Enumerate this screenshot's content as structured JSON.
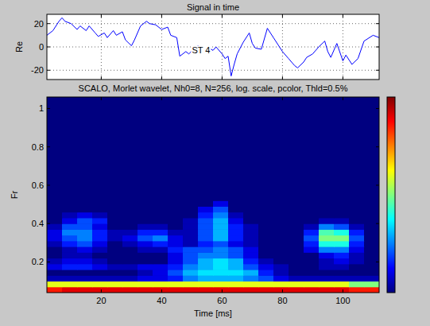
{
  "chart_data": [
    {
      "type": "line",
      "title": "Signal in time",
      "ylabel": "Re",
      "grid": true,
      "tick_labels": "y",
      "xlim": [
        2,
        112
      ],
      "ylim": [
        -28,
        28
      ],
      "xticks": [
        20,
        40,
        60,
        80,
        100
      ],
      "yticks": [
        -20,
        0,
        20
      ],
      "annotations": [
        {
          "text": "ST 4",
          "x": 50,
          "y": -3
        }
      ],
      "x": [
        2,
        4,
        6,
        7,
        8,
        10,
        12,
        13,
        15,
        16,
        18,
        19,
        21,
        22,
        24,
        25,
        27,
        28,
        30,
        31,
        33,
        35,
        36,
        38,
        40,
        42,
        43,
        45,
        46,
        48,
        49,
        51,
        52,
        54,
        55,
        57,
        58,
        60,
        61,
        62,
        63,
        64,
        65,
        67,
        69,
        70,
        71,
        73,
        75,
        77,
        79,
        80,
        82,
        84,
        85,
        87,
        88,
        90,
        92,
        94,
        95,
        96,
        98,
        100,
        101,
        103,
        105,
        107,
        110,
        112
      ],
      "series": [
        {
          "name": "Re",
          "color": "#0000ff",
          "values": [
            10,
            14,
            22,
            25,
            22,
            20,
            15,
            18,
            14,
            18,
            12,
            9,
            12,
            8,
            14,
            10,
            13,
            6,
            1,
            6,
            18,
            22,
            20,
            19,
            15,
            17,
            10,
            8,
            -8,
            -4,
            -6,
            -1,
            1,
            -2,
            0,
            -3,
            0,
            -6,
            -10,
            -8,
            -25,
            -15,
            -6,
            4,
            12,
            3,
            -1,
            -2,
            16,
            8,
            0,
            -4,
            -10,
            -16,
            -18,
            -13,
            -9,
            -6,
            0,
            5,
            -4,
            -9,
            3,
            -12,
            -7,
            -15,
            -10,
            5,
            10,
            8
          ]
        }
      ]
    },
    {
      "type": "heatmap",
      "title": "SCALO, Morlet wavelet, Nh0=8, N=256, log. scale, pcolor, Thld=0.5%",
      "xlabel": "Time [ms]",
      "ylabel": "Fr",
      "xlim": [
        2,
        112
      ],
      "ylim": [
        0.04,
        1.06
      ],
      "xticks": [
        20,
        40,
        60,
        80,
        100
      ],
      "yticks": [
        0.2,
        0.4,
        0.6,
        0.8,
        1
      ],
      "colorbar_range": [
        0,
        1
      ],
      "x": [
        4.5,
        9.5,
        14.5,
        19.5,
        24.5,
        29.5,
        34.5,
        39.5,
        44.5,
        49.5,
        54.5,
        59.5,
        64.5,
        69.5,
        74.5,
        79.5,
        84.5,
        89.5,
        94.5,
        99.5,
        104.5,
        109.5
      ],
      "y": [
        0.055,
        0.085,
        0.115,
        0.145,
        0.175,
        0.205,
        0.235,
        0.265,
        0.295,
        0.325,
        0.355,
        0.385,
        0.415,
        0.445,
        0.475,
        0.505,
        0.535,
        0.565,
        0.595,
        0.625,
        0.655,
        0.685,
        0.715,
        0.745,
        0.775,
        0.805,
        0.835,
        0.865,
        0.895,
        0.925,
        0.955,
        0.985,
        1.015,
        1.045
      ],
      "values": [
        [
          0.85,
          0.9,
          0.9,
          0.9,
          0.9,
          0.9,
          0.9,
          0.9,
          0.9,
          0.9,
          0.9,
          0.9,
          0.9,
          0.9,
          0.9,
          0.9,
          0.9,
          0.9,
          0.9,
          0.9,
          0.85,
          0.85
        ],
        [
          0.6,
          0.6,
          0.6,
          0.6,
          0.6,
          0.6,
          0.6,
          0.6,
          0.6,
          0.6,
          0.6,
          0.6,
          0.6,
          0.6,
          0.6,
          0.6,
          0.6,
          0.6,
          0.6,
          0.6,
          0.5,
          0.5
        ],
        [
          0.05,
          0.05,
          0.05,
          0.05,
          0.05,
          0.05,
          0.1,
          0.1,
          0.15,
          0.25,
          0.3,
          0.3,
          0.3,
          0.25,
          0.2,
          0.1,
          0.05,
          0.05,
          0.05,
          0.05,
          0.05,
          0.05
        ],
        [
          0,
          0,
          0,
          0,
          0,
          0,
          0.05,
          0.1,
          0.2,
          0.3,
          0.35,
          0.35,
          0.35,
          0.3,
          0.15,
          0.05,
          0,
          0,
          0,
          0,
          0,
          0
        ],
        [
          0.1,
          0.15,
          0.15,
          0.1,
          0.05,
          0.05,
          0.1,
          0.1,
          0.15,
          0.25,
          0.3,
          0.35,
          0.3,
          0.2,
          0.1,
          0.05,
          0,
          0,
          0.05,
          0.05,
          0,
          0
        ],
        [
          0.05,
          0.1,
          0.1,
          0.05,
          0,
          0,
          0,
          0,
          0.1,
          0.2,
          0.3,
          0.35,
          0.3,
          0.15,
          0.05,
          0,
          0,
          0,
          0.05,
          0.1,
          0.05,
          0
        ],
        [
          0,
          0.05,
          0.05,
          0,
          0,
          0,
          0,
          0,
          0.1,
          0.2,
          0.25,
          0.25,
          0.2,
          0.1,
          0,
          0,
          0,
          0,
          0.1,
          0.15,
          0.05,
          0
        ],
        [
          0,
          0.05,
          0.1,
          0.05,
          0,
          0,
          0.05,
          0.05,
          0.15,
          0.2,
          0.2,
          0.25,
          0.2,
          0.1,
          0,
          0,
          0,
          0.1,
          0.25,
          0.25,
          0.1,
          0
        ],
        [
          0.05,
          0.15,
          0.2,
          0.1,
          0,
          0.05,
          0.1,
          0.15,
          0.1,
          0.05,
          0.15,
          0.2,
          0.1,
          0.05,
          0,
          0,
          0,
          0.15,
          0.4,
          0.4,
          0.15,
          0
        ],
        [
          0.1,
          0.2,
          0.25,
          0.15,
          0.05,
          0.1,
          0.2,
          0.25,
          0.1,
          0.05,
          0.2,
          0.3,
          0.15,
          0.05,
          0,
          0,
          0,
          0.2,
          0.5,
          0.5,
          0.2,
          0
        ],
        [
          0.1,
          0.25,
          0.25,
          0.15,
          0.05,
          0.05,
          0.15,
          0.15,
          0.05,
          0.05,
          0.2,
          0.3,
          0.15,
          0.05,
          0,
          0,
          0,
          0.15,
          0.45,
          0.4,
          0.15,
          0
        ],
        [
          0.05,
          0.2,
          0.2,
          0.1,
          0,
          0,
          0.05,
          0.05,
          0,
          0.05,
          0.2,
          0.3,
          0.15,
          0.05,
          0,
          0,
          0,
          0.05,
          0.25,
          0.2,
          0.05,
          0
        ],
        [
          0,
          0.1,
          0.2,
          0.15,
          0,
          0,
          0,
          0,
          0,
          0.05,
          0.2,
          0.3,
          0.1,
          0,
          0,
          0,
          0,
          0,
          0.05,
          0.05,
          0,
          0
        ],
        [
          0,
          0.05,
          0.1,
          0.05,
          0,
          0,
          0,
          0,
          0,
          0,
          0.15,
          0.25,
          0.05,
          0,
          0,
          0,
          0,
          0,
          0,
          0,
          0,
          0
        ],
        [
          0,
          0,
          0,
          0,
          0,
          0,
          0,
          0,
          0,
          0,
          0.1,
          0.2,
          0,
          0,
          0,
          0,
          0,
          0,
          0,
          0,
          0,
          0
        ],
        [
          0,
          0,
          0,
          0,
          0,
          0,
          0,
          0,
          0,
          0,
          0,
          0.1,
          0,
          0,
          0,
          0,
          0,
          0,
          0,
          0,
          0,
          0
        ],
        [
          0,
          0,
          0,
          0,
          0,
          0,
          0,
          0,
          0,
          0,
          0,
          0,
          0,
          0,
          0,
          0,
          0,
          0,
          0,
          0,
          0,
          0
        ],
        [
          0,
          0,
          0,
          0,
          0,
          0,
          0,
          0,
          0,
          0,
          0,
          0,
          0,
          0,
          0,
          0,
          0,
          0,
          0,
          0,
          0,
          0
        ],
        [
          0,
          0,
          0,
          0,
          0,
          0,
          0,
          0,
          0,
          0,
          0,
          0,
          0,
          0,
          0,
          0,
          0,
          0,
          0,
          0,
          0,
          0
        ],
        [
          0,
          0,
          0,
          0,
          0,
          0,
          0,
          0,
          0,
          0,
          0,
          0,
          0,
          0,
          0,
          0,
          0,
          0,
          0,
          0,
          0,
          0
        ],
        [
          0,
          0,
          0,
          0,
          0,
          0,
          0,
          0,
          0,
          0,
          0,
          0,
          0,
          0,
          0,
          0,
          0,
          0,
          0,
          0,
          0,
          0
        ],
        [
          0,
          0,
          0,
          0,
          0,
          0,
          0,
          0,
          0,
          0,
          0,
          0,
          0,
          0,
          0,
          0,
          0,
          0,
          0,
          0,
          0,
          0
        ],
        [
          0,
          0,
          0,
          0,
          0,
          0,
          0,
          0,
          0,
          0,
          0,
          0,
          0,
          0,
          0,
          0,
          0,
          0,
          0,
          0,
          0,
          0
        ],
        [
          0,
          0,
          0,
          0,
          0,
          0,
          0,
          0,
          0,
          0,
          0,
          0,
          0,
          0,
          0,
          0,
          0,
          0,
          0,
          0,
          0,
          0
        ],
        [
          0,
          0,
          0,
          0,
          0,
          0,
          0,
          0,
          0,
          0,
          0,
          0,
          0,
          0,
          0,
          0,
          0,
          0,
          0,
          0,
          0,
          0
        ],
        [
          0,
          0,
          0,
          0,
          0,
          0,
          0,
          0,
          0,
          0,
          0,
          0,
          0,
          0,
          0,
          0,
          0,
          0,
          0,
          0,
          0,
          0
        ],
        [
          0,
          0,
          0,
          0,
          0,
          0,
          0,
          0,
          0,
          0,
          0,
          0,
          0,
          0,
          0,
          0,
          0,
          0,
          0,
          0,
          0,
          0
        ],
        [
          0,
          0,
          0,
          0,
          0,
          0,
          0,
          0,
          0,
          0,
          0,
          0,
          0,
          0,
          0,
          0,
          0,
          0,
          0,
          0,
          0,
          0
        ],
        [
          0,
          0,
          0,
          0,
          0,
          0,
          0,
          0,
          0,
          0,
          0,
          0,
          0,
          0,
          0,
          0,
          0,
          0,
          0,
          0,
          0,
          0
        ],
        [
          0,
          0,
          0,
          0,
          0,
          0,
          0,
          0,
          0,
          0,
          0,
          0,
          0,
          0,
          0,
          0,
          0,
          0,
          0,
          0,
          0,
          0
        ],
        [
          0,
          0,
          0,
          0,
          0,
          0,
          0,
          0,
          0,
          0,
          0,
          0,
          0,
          0,
          0,
          0,
          0,
          0,
          0,
          0,
          0,
          0
        ],
        [
          0,
          0,
          0,
          0,
          0,
          0,
          0,
          0,
          0,
          0,
          0,
          0,
          0,
          0,
          0,
          0,
          0,
          0,
          0,
          0,
          0,
          0
        ],
        [
          0,
          0,
          0,
          0,
          0,
          0,
          0,
          0,
          0,
          0,
          0,
          0,
          0,
          0,
          0,
          0,
          0,
          0,
          0,
          0,
          0,
          0
        ],
        [
          0,
          0,
          0,
          0,
          0,
          0,
          0,
          0,
          0,
          0,
          0,
          0,
          0,
          0,
          0,
          0,
          0,
          0,
          0,
          0,
          0,
          0
        ]
      ]
    }
  ]
}
